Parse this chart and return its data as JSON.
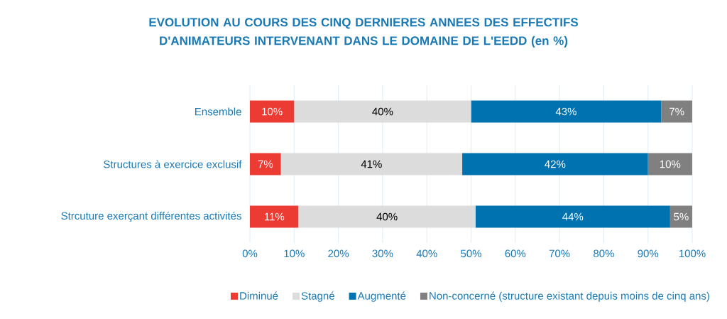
{
  "chart_data": {
    "type": "bar",
    "orientation": "horizontal",
    "stacked": true,
    "title": "EVOLUTION AU COURS DES CINQ DERNIERES ANNEES DES EFFECTIFS D'ANIMATEURS INTERVENANT DANS LE DOMAINE DE L'EEDD (en %)",
    "categories": [
      "Ensemble",
      "Structures à exercice exclusif",
      "Strcuture exerçant différentes activités"
    ],
    "series": [
      {
        "name": "Diminué",
        "color": "#ec3b33",
        "values": [
          10,
          7,
          11
        ],
        "value_labels": [
          "10%",
          "7%",
          "11%"
        ]
      },
      {
        "name": "Stagné",
        "color": "#dcdcdc",
        "values": [
          40,
          41,
          40
        ],
        "value_labels": [
          "40%",
          "41%",
          "40%"
        ]
      },
      {
        "name": "Augmenté",
        "color": "#0072b0",
        "values": [
          43,
          42,
          44
        ],
        "value_labels": [
          "43%",
          "42%",
          "44%"
        ]
      },
      {
        "name": "Non-concerné (structure existant depuis moins de cinq ans)",
        "color": "#808080",
        "values": [
          7,
          10,
          5
        ],
        "value_labels": [
          "7%",
          "10%",
          "5%"
        ]
      }
    ],
    "xlim": [
      0,
      100
    ],
    "xticks": [
      {
        "value": 0,
        "label": "0%"
      },
      {
        "value": 10,
        "label": "10%"
      },
      {
        "value": 20,
        "label": "20%"
      },
      {
        "value": 30,
        "label": "30%"
      },
      {
        "value": 40,
        "label": "40%"
      },
      {
        "value": 50,
        "label": "50%"
      },
      {
        "value": 60,
        "label": "60%"
      },
      {
        "value": 70,
        "label": "70%"
      },
      {
        "value": 80,
        "label": "80%"
      },
      {
        "value": 90,
        "label": "90%"
      },
      {
        "value": 100,
        "label": "100%"
      }
    ],
    "grid": "x",
    "legend": "bottom"
  }
}
